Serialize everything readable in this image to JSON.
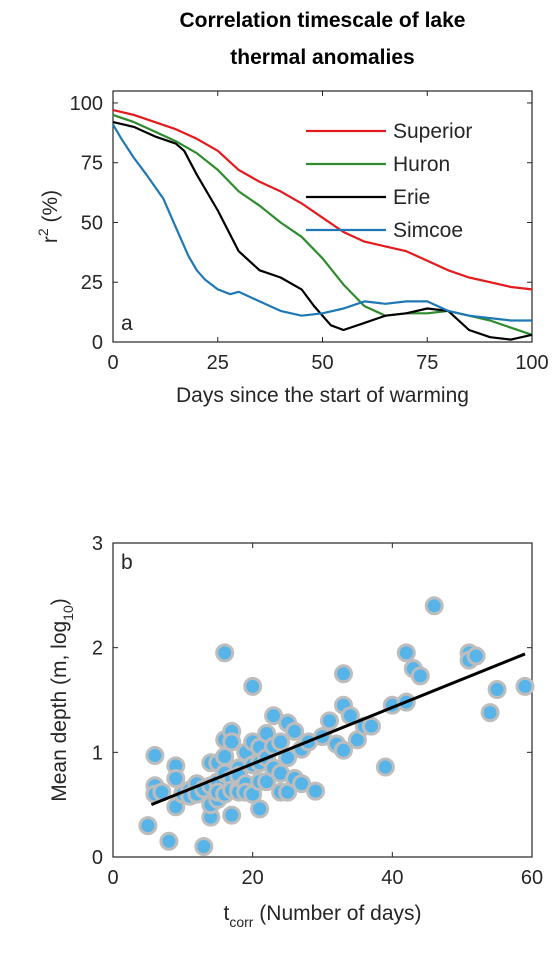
{
  "chart_data": [
    {
      "panel": "a",
      "type": "line",
      "title": [
        "Correlation timescale of lake",
        "thermal anomalies"
      ],
      "xlabel": "Days since the start of warming",
      "ylabel_base": "r",
      "ylabel_sup": "2",
      "ylabel_tail": " (%)",
      "xlim": [
        0,
        100
      ],
      "ylim": [
        0,
        105
      ],
      "xticks": [
        0,
        25,
        50,
        75,
        100
      ],
      "yticks": [
        0,
        25,
        50,
        75,
        100
      ],
      "legend_position": "top-right",
      "series": [
        {
          "name": "Superior",
          "color": "#e41a1c",
          "x": [
            0,
            5,
            10,
            15,
            20,
            25,
            30,
            35,
            40,
            45,
            50,
            55,
            60,
            65,
            70,
            75,
            80,
            85,
            90,
            95,
            100
          ],
          "y": [
            97,
            95,
            92,
            89,
            85,
            80,
            72,
            67,
            63,
            58,
            52,
            46,
            42,
            40,
            38,
            34,
            30,
            27,
            25,
            23,
            22
          ]
        },
        {
          "name": "Huron",
          "color": "#2e8b2e",
          "x": [
            0,
            5,
            10,
            15,
            20,
            25,
            30,
            35,
            40,
            45,
            50,
            55,
            60,
            65,
            70,
            75,
            80,
            85,
            90,
            95,
            100
          ],
          "y": [
            95,
            92,
            88,
            84,
            79,
            72,
            63,
            57,
            50,
            44,
            35,
            24,
            15,
            11,
            12,
            12,
            13,
            11,
            9,
            6,
            3
          ]
        },
        {
          "name": "Erie",
          "color": "#000000",
          "x": [
            0,
            5,
            10,
            15,
            17,
            20,
            25,
            30,
            35,
            40,
            45,
            48,
            52,
            55,
            60,
            65,
            70,
            75,
            80,
            85,
            90,
            95,
            100
          ],
          "y": [
            92,
            90,
            86,
            83,
            80,
            70,
            55,
            38,
            30,
            27,
            22,
            15,
            7,
            5,
            8,
            11,
            12,
            14,
            13,
            5,
            2,
            1,
            3
          ]
        },
        {
          "name": "Simcoe",
          "color": "#1f78b4",
          "x": [
            0,
            2,
            5,
            8,
            12,
            15,
            18,
            20,
            22,
            25,
            28,
            30,
            35,
            40,
            45,
            50,
            55,
            60,
            65,
            70,
            75,
            80,
            85,
            90,
            95,
            100
          ],
          "y": [
            91,
            85,
            77,
            70,
            60,
            48,
            36,
            30,
            26,
            22,
            20,
            21,
            17,
            13,
            11,
            12,
            14,
            17,
            16,
            17,
            17,
            13,
            11,
            10,
            9,
            9
          ]
        }
      ]
    },
    {
      "panel": "b",
      "type": "scatter",
      "xlabel_base": "t",
      "xlabel_sub": "corr",
      "xlabel_tail": " (Number of days)",
      "ylabel_base": "Mean depth (m, log",
      "ylabel_sub": "10",
      "ylabel_tail": ")",
      "xlim": [
        0,
        60
      ],
      "ylim": [
        0,
        3
      ],
      "xticks": [
        0,
        20,
        40,
        60
      ],
      "yticks": [
        0,
        1,
        2,
        3
      ],
      "marker_fill": "#56b4e9",
      "marker_edge": "#bdbdbd",
      "fit_line": {
        "color": "#000000",
        "x": [
          5.5,
          59
        ],
        "y": [
          0.5,
          1.94
        ]
      },
      "points": {
        "x": [
          5,
          6,
          6,
          6,
          7,
          8,
          9,
          9,
          9,
          10,
          10,
          11,
          11,
          12,
          12,
          13,
          13,
          14,
          14,
          14,
          14,
          15,
          15,
          15,
          15,
          16,
          16,
          16,
          16,
          16,
          17,
          17,
          17,
          17,
          17,
          18,
          18,
          18,
          18,
          19,
          19,
          19,
          20,
          20,
          20,
          20,
          21,
          21,
          21,
          21,
          22,
          22,
          22,
          23,
          23,
          23,
          24,
          24,
          24,
          25,
          25,
          25,
          26,
          26,
          27,
          27,
          28,
          29,
          30,
          31,
          32,
          33,
          33,
          33,
          34,
          35,
          36,
          37,
          39,
          40,
          42,
          42,
          43,
          44,
          46,
          51,
          51,
          52,
          54,
          55,
          59
        ],
        "y": [
          0.3,
          0.97,
          0.68,
          0.6,
          0.62,
          0.15,
          0.87,
          0.75,
          0.48,
          0.61,
          0.6,
          0.64,
          0.58,
          0.7,
          0.6,
          0.1,
          0.65,
          0.9,
          0.38,
          0.5,
          0.68,
          0.9,
          0.72,
          0.55,
          0.62,
          1.95,
          1.12,
          0.8,
          0.96,
          0.6,
          1.2,
          1.1,
          0.75,
          0.64,
          0.4,
          0.85,
          0.78,
          0.65,
          0.62,
          1.0,
          0.7,
          0.62,
          1.63,
          1.1,
          0.88,
          0.6,
          1.05,
          0.9,
          0.72,
          0.46,
          1.18,
          0.95,
          0.72,
          1.35,
          1.06,
          0.85,
          1.1,
          0.8,
          0.62,
          1.28,
          0.95,
          0.62,
          1.2,
          0.75,
          1.03,
          0.7,
          1.1,
          0.63,
          1.15,
          1.3,
          1.08,
          1.75,
          1.45,
          1.02,
          1.35,
          1.12,
          1.25,
          1.25,
          0.86,
          1.45,
          1.95,
          1.48,
          1.8,
          1.73,
          2.4,
          1.95,
          1.88,
          1.92,
          1.38,
          1.6,
          1.63
        ]
      }
    }
  ]
}
